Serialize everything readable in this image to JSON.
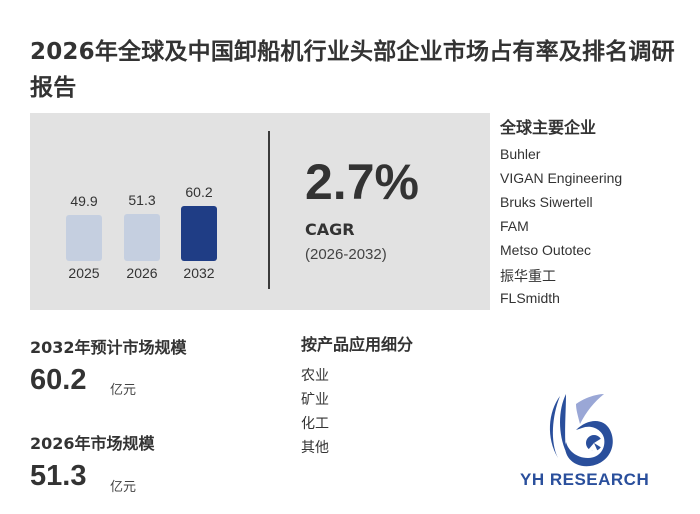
{
  "title": "2026年全球及中国卸船机行业头部企业市场占有率及排名调研报告",
  "chart_data": {
    "type": "bar",
    "categories": [
      "2025",
      "2026",
      "2032"
    ],
    "values": [
      49.9,
      51.3,
      60.2
    ]
  },
  "cagr": {
    "value": "2.7%",
    "label": "CAGR",
    "range": "(2026-2032)"
  },
  "companies": {
    "title": "全球主要企业",
    "items": [
      "Buhler",
      "VIGAN Engineering",
      "Bruks Siwertell",
      "FAM",
      "Metso Outotec",
      "振华重工",
      "FLSmidth"
    ]
  },
  "applications": {
    "title": "按产品应用细分",
    "items": [
      "农业",
      "矿业",
      "化工",
      "其他"
    ]
  },
  "stats": {
    "forecast_label": "2032年预计市场规模",
    "forecast_value": "60.2",
    "forecast_unit": "亿元",
    "current_label": "2026年市场规模",
    "current_value": "51.3",
    "current_unit": "亿元"
  },
  "logo": {
    "text": "YH RESEARCH"
  },
  "colors": {
    "bar_light": "#c5cfe0",
    "bar_dark": "#1f3d85",
    "panel": "#e2e2e2",
    "brand": "#2a4f9c"
  }
}
